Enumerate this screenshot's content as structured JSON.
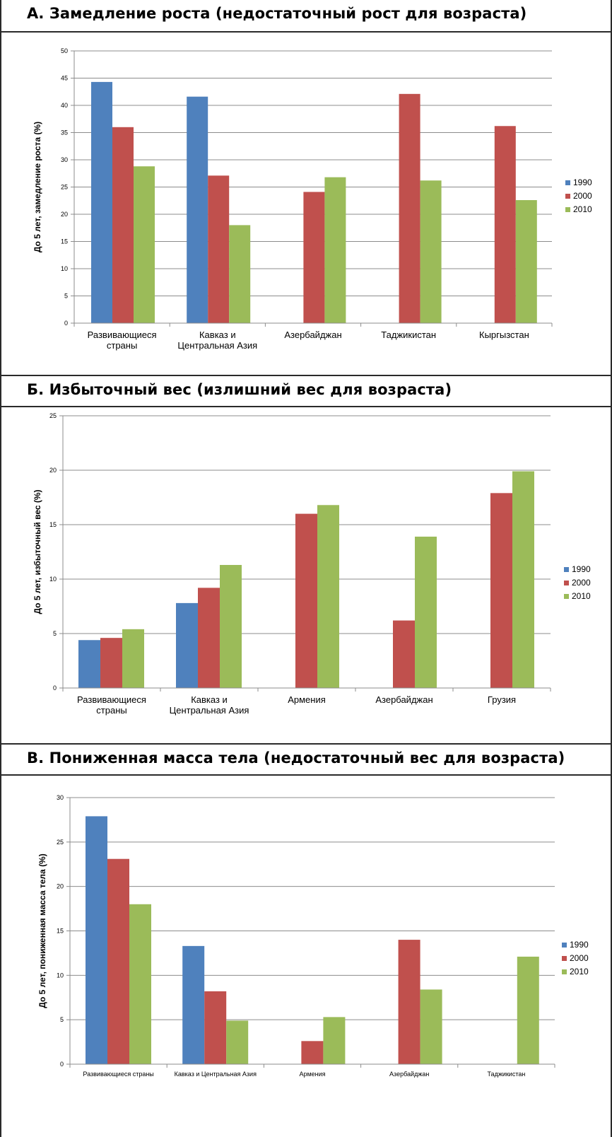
{
  "colors": {
    "s1990": "#4F81BD",
    "s2000": "#C0504D",
    "s2010": "#9BBB59"
  },
  "chart_data": [
    {
      "type": "bar",
      "title": "А.  Замедление роста (недостаточный рост для возраста)",
      "ylabel": "До 5 лет, замедление роста (%)",
      "categories": [
        [
          "Развивающиеся",
          "страны"
        ],
        [
          "Кавказ и",
          "Центральная Азия"
        ],
        [
          "Азербайджан"
        ],
        [
          "Таджикистан"
        ],
        [
          "Кыргызстан"
        ]
      ],
      "ylim": [
        0,
        50
      ],
      "yticks": [
        0,
        5,
        10,
        15,
        20,
        25,
        30,
        35,
        40,
        45,
        50
      ],
      "legend_position": "right",
      "grid": true,
      "series": [
        {
          "name": "1990",
          "values": [
            44.3,
            41.6,
            null,
            null,
            null
          ]
        },
        {
          "name": "2000",
          "values": [
            36.0,
            27.1,
            24.1,
            42.1,
            36.2
          ]
        },
        {
          "name": "2010",
          "values": [
            28.8,
            18.0,
            26.8,
            26.2,
            22.6
          ]
        }
      ]
    },
    {
      "type": "bar",
      "title": "Б.  Избыточный вес (излишний вес для возраста)",
      "ylabel": "До 5 лет, избыточный вес (%)",
      "categories": [
        [
          "Развивающиеся",
          "страны"
        ],
        [
          "Кавказ и",
          "Центральная Азия"
        ],
        [
          "Армения"
        ],
        [
          "Азербайджан"
        ],
        [
          "Грузия"
        ]
      ],
      "ylim": [
        0,
        25
      ],
      "yticks": [
        0,
        5,
        10,
        15,
        20,
        25
      ],
      "legend_position": "right",
      "grid": true,
      "series": [
        {
          "name": "1990",
          "values": [
            4.4,
            7.8,
            null,
            null,
            null
          ]
        },
        {
          "name": "2000",
          "values": [
            4.6,
            9.2,
            16.0,
            6.2,
            17.9
          ]
        },
        {
          "name": "2010",
          "values": [
            5.4,
            11.3,
            16.8,
            13.9,
            19.9
          ]
        }
      ]
    },
    {
      "type": "bar",
      "title": "В.  Пониженная масса тела (недостаточный вес для возраста)",
      "ylabel": "До 5 лет, пониженная масса тела (%)",
      "categories": [
        [
          "Развивающиеся страны"
        ],
        [
          "Кавказ и Центральная Азия"
        ],
        [
          "Армения"
        ],
        [
          "Азербайджан"
        ],
        [
          "Таджикистан"
        ]
      ],
      "ylim": [
        0,
        30
      ],
      "yticks": [
        0,
        5,
        10,
        15,
        20,
        25,
        30
      ],
      "legend_position": "right",
      "grid": true,
      "series": [
        {
          "name": "1990",
          "values": [
            27.9,
            13.3,
            null,
            null,
            null
          ]
        },
        {
          "name": "2000",
          "values": [
            23.1,
            8.2,
            2.6,
            14.0,
            null
          ]
        },
        {
          "name": "2010",
          "values": [
            18.0,
            4.9,
            5.3,
            8.4,
            12.1
          ]
        }
      ]
    }
  ]
}
